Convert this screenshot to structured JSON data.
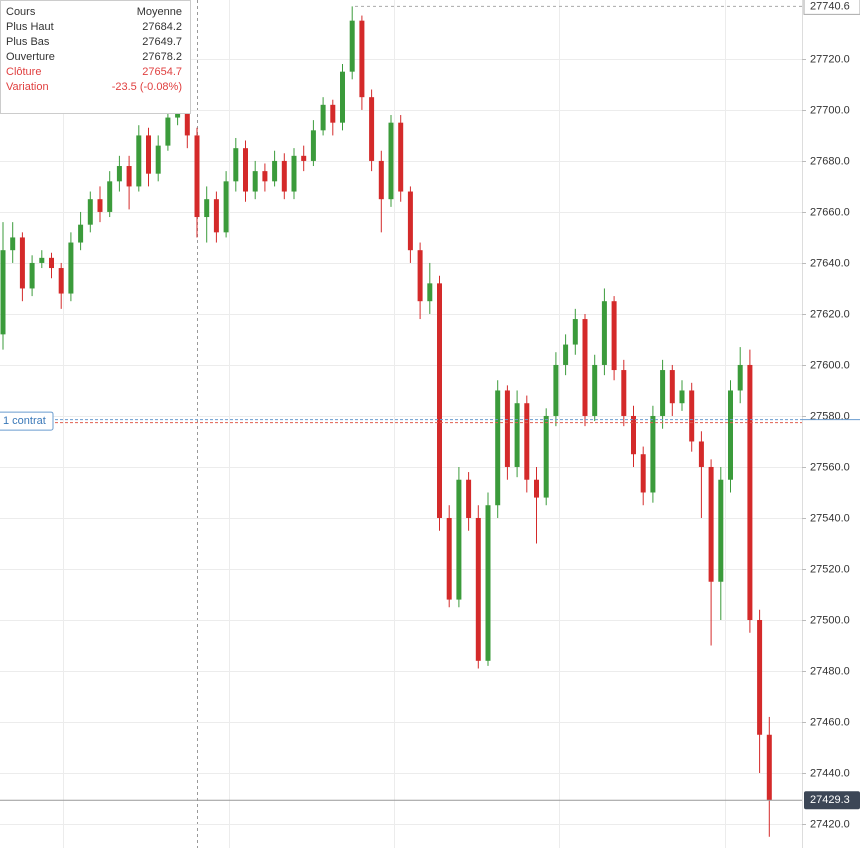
{
  "chart_data": {
    "type": "candlestick",
    "ylim": [
      27410.6,
      27743.1
    ],
    "yticks": [
      {
        "value": 27420,
        "label": "27420.0"
      },
      {
        "value": 27440,
        "label": "27440.0"
      },
      {
        "value": 27460,
        "label": "27460.0"
      },
      {
        "value": 27480,
        "label": "27480.0"
      },
      {
        "value": 27500,
        "label": "27500.0"
      },
      {
        "value": 27520,
        "label": "27520.0"
      },
      {
        "value": 27540,
        "label": "27540.0"
      },
      {
        "value": 27560,
        "label": "27560.0"
      },
      {
        "value": 27580,
        "label": "27580.0"
      },
      {
        "value": 27600,
        "label": "27600.0"
      },
      {
        "value": 27620,
        "label": "27620.0"
      },
      {
        "value": 27640,
        "label": "27640.0"
      },
      {
        "value": 27660,
        "label": "27660.0"
      },
      {
        "value": 27680,
        "label": "27680.0"
      },
      {
        "value": 27700,
        "label": "27700.0"
      },
      {
        "value": 27720,
        "label": "27720.0"
      }
    ],
    "grid": true,
    "up_color": "#3b9b3b",
    "down_color": "#d42a2a",
    "open": [
      27612,
      27645,
      27650,
      27630,
      27640,
      27642,
      27638,
      27628,
      27648,
      27655,
      27665,
      27660,
      27672,
      27678,
      27670,
      27690,
      27675,
      27686,
      27697,
      27700,
      27690,
      27658,
      27665,
      27652,
      27672,
      27685,
      27668,
      27676,
      27672,
      27680,
      27668,
      27682,
      27680,
      27692,
      27702,
      27695,
      27715,
      27735,
      27705,
      27680,
      27665,
      27695,
      27668,
      27645,
      27625,
      27632,
      27540,
      27508,
      27555,
      27540,
      27484,
      27545,
      27590,
      27560,
      27585,
      27555,
      27548,
      27580,
      27600,
      27608,
      27618,
      27580,
      27600,
      27625,
      27598,
      27580,
      27565,
      27550,
      27580,
      27598,
      27585,
      27590,
      27570,
      27560,
      27515,
      27555,
      27590,
      27600,
      27500,
      27455
    ],
    "high": [
      27656,
      27656,
      27652,
      27643,
      27645,
      27644,
      27640,
      27652,
      27660,
      27668,
      27670,
      27676,
      27682,
      27682,
      27694,
      27693,
      27690,
      27700,
      27703,
      27702,
      27693,
      27670,
      27668,
      27676,
      27689,
      27688,
      27680,
      27679,
      27684,
      27683,
      27685,
      27686,
      27696,
      27705,
      27704,
      27718,
      27740.6,
      27737,
      27708,
      27684,
      27698,
      27698,
      27670,
      27648,
      27640,
      27635,
      27545,
      27560,
      27558,
      27545,
      27550,
      27594,
      27592,
      27590,
      27588,
      27560,
      27583,
      27605,
      27612,
      27622,
      27620,
      27604,
      27630,
      27627,
      27602,
      27584,
      27568,
      27584,
      27602,
      27600,
      27594,
      27593,
      27574,
      27563,
      27560,
      27594,
      27607,
      27606,
      27504,
      27462
    ],
    "low": [
      27606,
      27640,
      27625,
      27627,
      27638,
      27634,
      27622,
      27625,
      27645,
      27652,
      27656,
      27658,
      27668,
      27661,
      27668,
      27670,
      27672,
      27684,
      27694,
      27685,
      27650,
      27648,
      27648,
      27650,
      27668,
      27664,
      27665,
      27668,
      27670,
      27665,
      27665,
      27676,
      27678,
      27690,
      27690,
      27692,
      27712,
      27700,
      27676,
      27652,
      27662,
      27664,
      27640,
      27618,
      27620,
      27535,
      27505,
      27505,
      27535,
      27481,
      27482,
      27540,
      27555,
      27556,
      27550,
      27530,
      27545,
      27576,
      27596,
      27604,
      27576,
      27578,
      27596,
      27594,
      27576,
      27560,
      27545,
      27546,
      27575,
      27580,
      27582,
      27566,
      27540,
      27490,
      27500,
      27550,
      27585,
      27495,
      27440,
      27415
    ],
    "close": [
      27645,
      27650,
      27630,
      27640,
      27642,
      27638,
      27628,
      27648,
      27655,
      27665,
      27660,
      27672,
      27678,
      27670,
      27690,
      27675,
      27686,
      27697,
      27700,
      27690,
      27658,
      27665,
      27652,
      27672,
      27685,
      27668,
      27676,
      27672,
      27680,
      27668,
      27682,
      27680,
      27692,
      27702,
      27695,
      27715,
      27735,
      27705,
      27680,
      27665,
      27695,
      27668,
      27645,
      27625,
      27632,
      27540,
      27508,
      27555,
      27540,
      27484,
      27545,
      27590,
      27560,
      27585,
      27555,
      27548,
      27580,
      27600,
      27608,
      27618,
      27580,
      27600,
      27625,
      27598,
      27580,
      27565,
      27550,
      27580,
      27598,
      27585,
      27590,
      27570,
      27560,
      27515,
      27555,
      27590,
      27600,
      27500,
      27455,
      27429.3
    ],
    "max_marker": 27740.6,
    "last_price": 27429.3,
    "position_label": "1 contrat",
    "position_level": 27578,
    "info_box": {
      "header": [
        "Cours",
        "Moyenne"
      ],
      "rows": [
        [
          "Plus Haut",
          "27684.2"
        ],
        [
          "Plus Bas",
          "27649.7"
        ],
        [
          "Ouverture",
          "27678.2"
        ],
        [
          "Clôture",
          "27654.7"
        ],
        [
          "Variation",
          "-23.5 (-0.08%)"
        ]
      ]
    }
  }
}
